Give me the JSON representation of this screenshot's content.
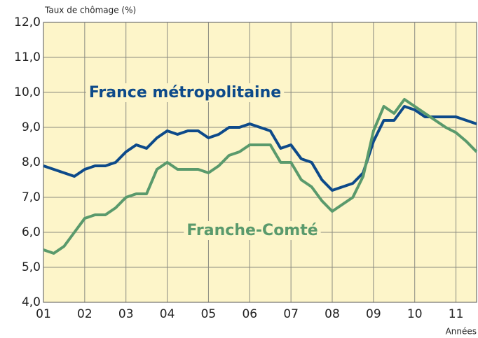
{
  "chart_data": {
    "type": "line",
    "y_label": "Taux de chômage (%)",
    "x_label": "Années",
    "x": [
      1,
      1.25,
      1.5,
      1.75,
      2,
      2.25,
      2.5,
      2.75,
      3,
      3.25,
      3.5,
      3.75,
      4,
      4.25,
      4.5,
      4.75,
      5,
      5.25,
      5.5,
      5.75,
      6,
      6.25,
      6.5,
      6.75,
      7,
      7.25,
      7.5,
      7.75,
      8,
      8.25,
      8.5,
      8.75,
      9,
      9.25,
      9.5,
      9.75,
      10,
      10.25,
      10.5,
      10.75,
      11,
      11.25,
      11.5
    ],
    "series": [
      {
        "name": "France métropolitaine",
        "color": "#0d4a8a",
        "values": [
          7.9,
          7.8,
          7.7,
          7.6,
          7.8,
          7.9,
          7.9,
          8.0,
          8.3,
          8.5,
          8.4,
          8.7,
          8.9,
          8.8,
          8.9,
          8.9,
          8.7,
          8.8,
          9.0,
          9.0,
          9.1,
          9.0,
          8.9,
          8.4,
          8.5,
          8.1,
          8.0,
          7.5,
          7.2,
          7.3,
          7.4,
          7.7,
          8.6,
          9.2,
          9.2,
          9.6,
          9.5,
          9.3,
          9.3,
          9.3,
          9.3,
          9.2,
          9.1
        ]
      },
      {
        "name": "Franche-Comté",
        "color": "#5a9a6c",
        "values": [
          5.5,
          5.4,
          5.6,
          6.0,
          6.4,
          6.5,
          6.5,
          6.7,
          7.0,
          7.1,
          7.1,
          7.8,
          8.0,
          7.8,
          7.8,
          7.8,
          7.7,
          7.9,
          8.2,
          8.3,
          8.5,
          8.5,
          8.5,
          8.0,
          8.0,
          7.5,
          7.3,
          6.9,
          6.6,
          6.8,
          7.0,
          7.6,
          8.9,
          9.6,
          9.4,
          9.8,
          9.6,
          9.4,
          9.2,
          9.0,
          8.85,
          8.6,
          8.3
        ]
      }
    ],
    "xlim": [
      1,
      11.5
    ],
    "xticks": [
      {
        "value": 1,
        "label": "01"
      },
      {
        "value": 2,
        "label": "02"
      },
      {
        "value": 3,
        "label": "03"
      },
      {
        "value": 4,
        "label": "04"
      },
      {
        "value": 5,
        "label": "05"
      },
      {
        "value": 6,
        "label": "06"
      },
      {
        "value": 7,
        "label": "07"
      },
      {
        "value": 8,
        "label": "08"
      },
      {
        "value": 9,
        "label": "09"
      },
      {
        "value": 10,
        "label": "10"
      },
      {
        "value": 11,
        "label": "11"
      }
    ],
    "ylim": [
      4,
      12
    ],
    "yticks": [
      {
        "value": 4,
        "label": "4,0"
      },
      {
        "value": 5,
        "label": "5,0"
      },
      {
        "value": 6,
        "label": "6,0"
      },
      {
        "value": 7,
        "label": "7,0"
      },
      {
        "value": 8,
        "label": "8,0"
      },
      {
        "value": 9,
        "label": "9,0"
      },
      {
        "value": 10,
        "label": "10,0"
      },
      {
        "value": 11,
        "label": "11,0"
      },
      {
        "value": 12,
        "label": "12,0"
      }
    ],
    "grid": true,
    "background": "#fdf5c9"
  }
}
